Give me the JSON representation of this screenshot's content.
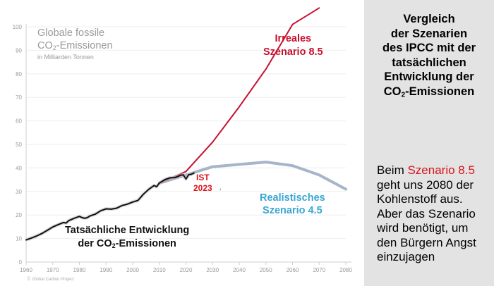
{
  "chart_data": {
    "type": "line",
    "title_lines": [
      "Globale fossile",
      "CO",
      "-Emissionen"
    ],
    "title_sub": "2",
    "unit_label": "in Milliarden Tonnen",
    "xlim": [
      1960,
      2080
    ],
    "ylim": [
      0,
      100
    ],
    "x_ticks": [
      1960,
      1970,
      1980,
      1990,
      2000,
      2010,
      2020,
      2030,
      2040,
      2050,
      2060,
      2070,
      2080
    ],
    "y_ticks": [
      0,
      10,
      20,
      30,
      40,
      50,
      60,
      70,
      80,
      90,
      100
    ],
    "x_tick_labels": [
      "1960",
      "1970",
      "1980",
      "1990",
      "2000",
      "2010",
      "2020",
      "2030",
      "2040",
      "2050",
      "2060",
      "2070",
      "2080"
    ],
    "y_tick_labels": [
      "0",
      "10",
      "20",
      "30",
      "40",
      "50",
      "60",
      "70",
      "80",
      "90",
      "100"
    ],
    "series": [
      {
        "name": "Tatsächliche Entwicklung der CO2-Emissionen",
        "color": "#111111",
        "x": [
          1960,
          1962,
          1964,
          1966,
          1968,
          1970,
          1972,
          1974,
          1975,
          1976,
          1978,
          1980,
          1981,
          1982,
          1983,
          1984,
          1986,
          1988,
          1990,
          1992,
          1994,
          1996,
          1998,
          2000,
          2002,
          2004,
          2006,
          2008,
          2009,
          2010,
          2012,
          2014,
          2016,
          2018,
          2019,
          2020,
          2021,
          2022,
          2023
        ],
        "values": [
          9.4,
          10.2,
          11.1,
          12.2,
          13.5,
          14.9,
          15.9,
          16.8,
          16.6,
          17.6,
          18.6,
          19.4,
          18.9,
          18.6,
          18.9,
          19.6,
          20.4,
          21.8,
          22.6,
          22.5,
          22.9,
          24.0,
          24.6,
          25.5,
          26.2,
          28.8,
          30.9,
          32.5,
          32.0,
          33.6,
          35.0,
          35.8,
          35.9,
          36.9,
          37.1,
          35.3,
          37.1,
          37.3,
          37.8
        ]
      },
      {
        "name": "Irreales Szenario 8.5",
        "color": "#c8102e",
        "x": [
          2010,
          2020,
          2030,
          2040,
          2050,
          2060,
          2070
        ],
        "values": [
          33.5,
          38.5,
          51,
          66,
          82,
          101,
          108
        ]
      },
      {
        "name": "Realistisches Szenario 4.5",
        "color": "#a6b5c9",
        "x": [
          2010,
          2020,
          2030,
          2040,
          2050,
          2060,
          2070,
          2080
        ],
        "values": [
          33.5,
          37,
          40.5,
          41.5,
          42.5,
          41,
          37,
          31
        ]
      }
    ],
    "labels": {
      "ssp85": [
        "Irreales",
        "Szenario 8.5"
      ],
      "ssp45": [
        "Realistisches",
        "Szenario 4.5"
      ],
      "ist": [
        "IST",
        "2023"
      ],
      "actual": [
        "Tatsächliche Entwicklung",
        "der CO",
        "-Emissionen"
      ],
      "actual_sub": "2"
    },
    "source_note": "Ⓒ Global Carbon Project",
    "stray_mark": "›"
  },
  "panel": {
    "title_lines": [
      "Vergleich",
      "der Szenarien",
      "des IPCC mit der",
      "tatsächlichen",
      "Entwicklung der",
      "CO",
      "-Emissionen"
    ],
    "title_sub": "2",
    "note_line1_prefix": "Beim ",
    "note_line1_highlight": "Szenario 8.5",
    "note_lines": [
      "geht uns 2080 der",
      "Kohlenstoff aus.",
      "Aber das Szenario",
      "wird benötigt, um",
      "den Bürgern Angst",
      "einzujagen"
    ]
  }
}
